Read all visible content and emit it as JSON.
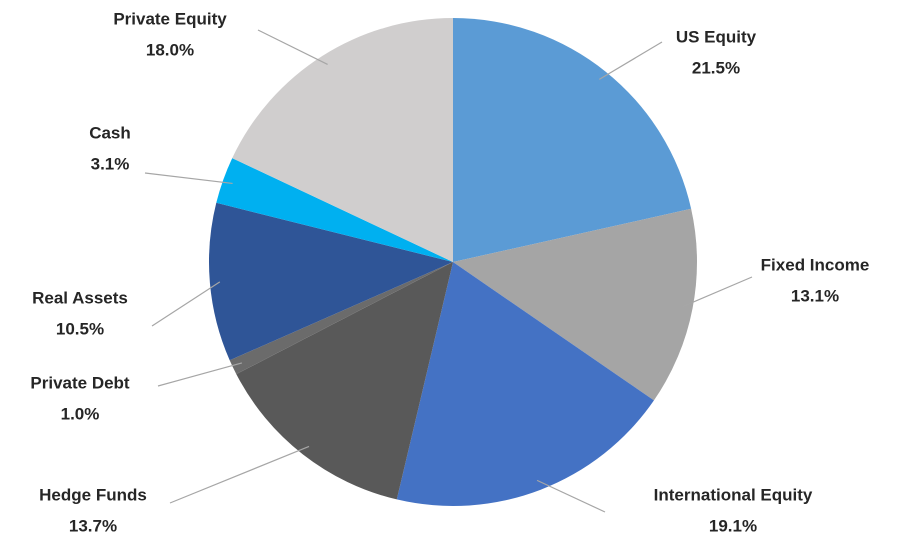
{
  "chart_data": {
    "type": "pie",
    "categories": [
      "US Equity",
      "Fixed Income",
      "International Equity",
      "Hedge Funds",
      "Private Debt",
      "Real Assets",
      "Cash",
      "Private Equity"
    ],
    "values": [
      21.5,
      13.1,
      19.1,
      13.7,
      1.0,
      10.5,
      3.1,
      18.0
    ],
    "value_labels": [
      "21.5%",
      "13.1%",
      "19.1%",
      "13.7%",
      "1.0%",
      "10.5%",
      "3.1%",
      "18.0%"
    ],
    "colors": [
      "#5b9bd5",
      "#a5a5a5",
      "#4472c4",
      "#595959",
      "#6b6b6b",
      "#2f5597",
      "#00b0f0",
      "#d0cece"
    ]
  }
}
